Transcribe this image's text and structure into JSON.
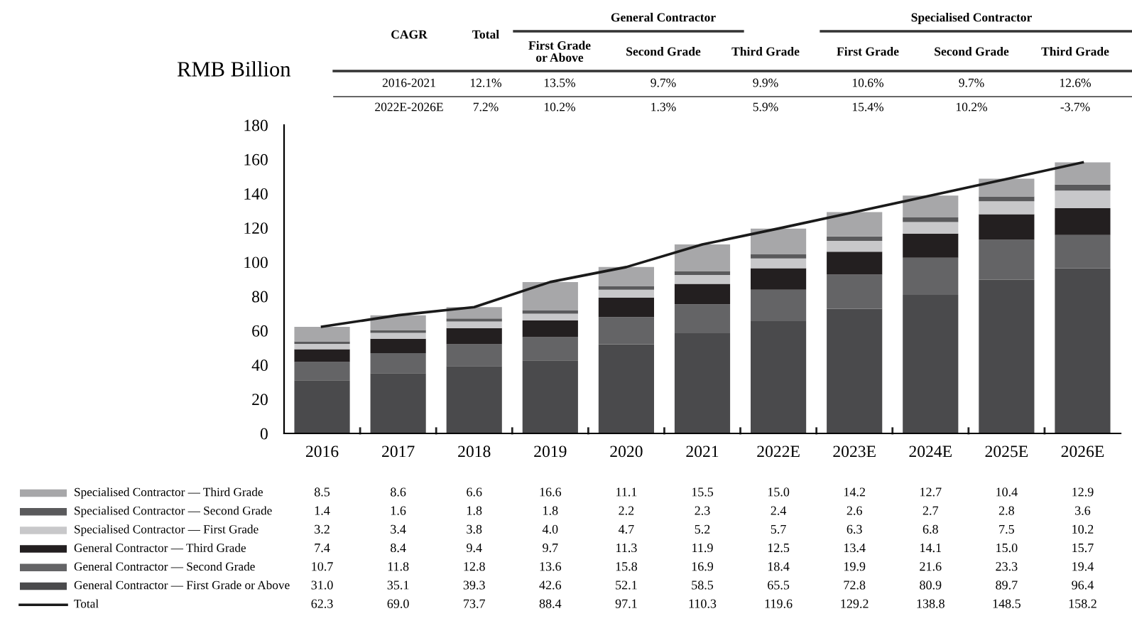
{
  "chart_data": [
    {
      "type": "other",
      "annotations": [
        "CAGR",
        "Total",
        "General Contractor",
        "Specialised Contractor",
        "First Grade\nor Above",
        "Second Grade",
        "Third Grade",
        "First Grade",
        "Second Grade",
        "Third Grade",
        "2016-2021",
        "12.1%",
        "13.5%",
        "9.7%",
        "9.9%",
        "10.6%",
        "9.7%",
        "12.6%",
        "2022E-2026E",
        "7.2%",
        "10.2%",
        "1.3%",
        "5.9%",
        "15.4%",
        "10.2%",
        "-3.7%"
      ]
    },
    {
      "type": "bar",
      "stacked": true,
      "ylabel": "RMB Billion",
      "ylim": [
        0,
        180
      ],
      "yticks": [
        0,
        20,
        40,
        60,
        80,
        100,
        120,
        140,
        160,
        180
      ],
      "grid": false,
      "legend": "bottom",
      "categories": [
        "2016",
        "2017",
        "2018",
        "2019",
        "2020",
        "2021",
        "2022E",
        "2023E",
        "2024E",
        "2025E",
        "2026E"
      ],
      "series": [
        {
          "name": "General Contractor — First Grade or Above",
          "color": "#4a4a4c",
          "values": [
            31.0,
            35.1,
            39.3,
            42.6,
            52.1,
            58.5,
            65.5,
            72.8,
            80.9,
            89.7,
            96.4
          ],
          "value_labels": [
            "31.0",
            "35.1",
            "39.3",
            "42.6",
            "52.1",
            "58.5",
            "65.5",
            "72.8",
            "80.9",
            "89.7",
            "96.4"
          ]
        },
        {
          "name": "General Contractor — Second Grade",
          "color": "#646466",
          "values": [
            10.7,
            11.8,
            12.8,
            13.6,
            15.8,
            16.9,
            18.4,
            19.9,
            21.6,
            23.3,
            19.4
          ],
          "value_labels": [
            "10.7",
            "11.8",
            "12.8",
            "13.6",
            "15.8",
            "16.9",
            "18.4",
            "19.9",
            "21.6",
            "23.3",
            "19.4"
          ]
        },
        {
          "name": "General Contractor — Third Grade",
          "color": "#231f20",
          "values": [
            7.4,
            8.4,
            9.4,
            9.7,
            11.3,
            11.9,
            12.5,
            13.4,
            14.1,
            15.0,
            15.7
          ],
          "value_labels": [
            "7.4",
            "8.4",
            "9.4",
            "9.7",
            "11.3",
            "11.9",
            "12.5",
            "13.4",
            "14.1",
            "15.0",
            "15.7"
          ]
        },
        {
          "name": "Specialised Contractor — First Grade",
          "color": "#c8c8ca",
          "values": [
            3.2,
            3.4,
            3.8,
            4.0,
            4.7,
            5.2,
            5.7,
            6.3,
            6.8,
            7.5,
            10.2
          ],
          "value_labels": [
            "3.2",
            "3.4",
            "3.8",
            "4.0",
            "4.7",
            "5.2",
            "5.7",
            "6.3",
            "6.8",
            "7.5",
            "10.2"
          ]
        },
        {
          "name": "Specialised Contractor — Second Grade",
          "color": "#5a5a5c",
          "values": [
            1.4,
            1.6,
            1.8,
            1.8,
            2.2,
            2.3,
            2.4,
            2.6,
            2.7,
            2.8,
            3.6
          ],
          "value_labels": [
            "1.4",
            "1.6",
            "1.8",
            "1.8",
            "2.2",
            "2.3",
            "2.4",
            "2.6",
            "2.7",
            "2.8",
            "3.6"
          ]
        },
        {
          "name": "Specialised Contractor — Third Grade",
          "color": "#a7a7a9",
          "values": [
            8.5,
            8.6,
            6.6,
            16.6,
            11.1,
            15.5,
            15.0,
            14.2,
            12.7,
            10.4,
            12.9
          ],
          "value_labels": [
            "8.5",
            "8.6",
            "6.6",
            "16.6",
            "11.1",
            "15.5",
            "15.0",
            "14.2",
            "12.7",
            "10.4",
            "12.9"
          ]
        },
        {
          "name": "Total",
          "type": "line",
          "color": "#1a1a1a",
          "values": [
            62.3,
            69.0,
            73.7,
            88.4,
            97.1,
            110.3,
            119.6,
            129.2,
            138.8,
            148.5,
            158.2
          ],
          "value_labels": [
            "62.3",
            "69.0",
            "73.7",
            "88.4",
            "97.1",
            "110.3",
            "119.6",
            "129.2",
            "138.8",
            "148.5",
            "158.2"
          ]
        }
      ]
    }
  ]
}
